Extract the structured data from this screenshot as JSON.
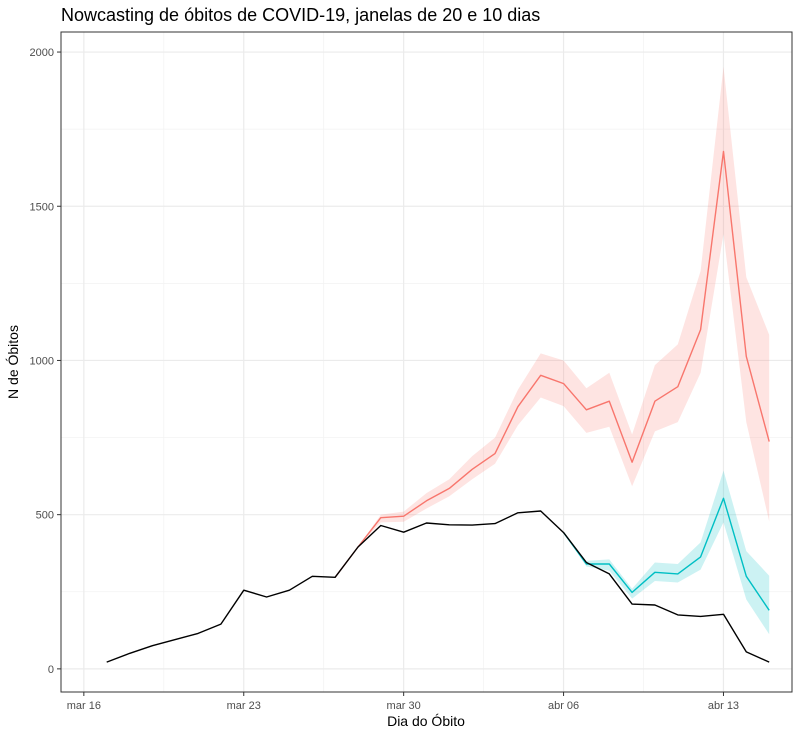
{
  "chart_data": {
    "type": "line",
    "title": "Nowcasting de óbitos de COVID-19, janelas de 20 e 10 dias",
    "xlabel": "Dia do Óbito",
    "ylabel": "N de Óbitos",
    "x_ticks": [
      "mar 16",
      "mar 23",
      "mar 30",
      "abr 06",
      "abr 13"
    ],
    "y_ticks": [
      0,
      500,
      1000,
      1500,
      2000
    ],
    "xlim": [
      "2020-03-15",
      "2020-04-16"
    ],
    "ylim": [
      -75,
      2065
    ],
    "grid": true,
    "legend": "none",
    "series": [
      {
        "color": "#000000",
        "ribbon": null,
        "points": [
          [
            "2020-03-17",
            22
          ],
          [
            "2020-03-18",
            50
          ],
          [
            "2020-03-19",
            75
          ],
          [
            "2020-03-20",
            95
          ],
          [
            "2020-03-21",
            115
          ],
          [
            "2020-03-22",
            145
          ],
          [
            "2020-03-23",
            255
          ],
          [
            "2020-03-24",
            233
          ],
          [
            "2020-03-25",
            255
          ],
          [
            "2020-03-26",
            300
          ],
          [
            "2020-03-27",
            297
          ],
          [
            "2020-03-28",
            395
          ],
          [
            "2020-03-29",
            465
          ],
          [
            "2020-03-30",
            443
          ],
          [
            "2020-03-31",
            473
          ],
          [
            "2020-04-01",
            467
          ],
          [
            "2020-04-02",
            466
          ],
          [
            "2020-04-03",
            471
          ],
          [
            "2020-04-04",
            506
          ],
          [
            "2020-04-05",
            512
          ],
          [
            "2020-04-06",
            442
          ],
          [
            "2020-04-07",
            345
          ],
          [
            "2020-04-08",
            308
          ],
          [
            "2020-04-09",
            210
          ],
          [
            "2020-04-10",
            207
          ],
          [
            "2020-04-11",
            175
          ],
          [
            "2020-04-12",
            170
          ],
          [
            "2020-04-13",
            177
          ],
          [
            "2020-04-14",
            55
          ],
          [
            "2020-04-15",
            22
          ]
        ]
      },
      {
        "color": "#f8766d",
        "ribbon_color": "#f8766d",
        "points": [
          [
            "2020-03-27",
            297
          ],
          [
            "2020-03-28",
            395
          ],
          [
            "2020-03-29",
            490
          ],
          [
            "2020-03-30",
            495
          ],
          [
            "2020-03-31",
            545
          ],
          [
            "2020-04-01",
            585
          ],
          [
            "2020-04-02",
            647
          ],
          [
            "2020-04-03",
            698
          ],
          [
            "2020-04-04",
            850
          ],
          [
            "2020-04-05",
            952
          ],
          [
            "2020-04-06",
            925
          ],
          [
            "2020-04-07",
            840
          ],
          [
            "2020-04-08",
            868
          ],
          [
            "2020-04-09",
            670
          ],
          [
            "2020-04-10",
            868
          ],
          [
            "2020-04-11",
            915
          ],
          [
            "2020-04-12",
            1100
          ],
          [
            "2020-04-13",
            1678
          ],
          [
            "2020-04-14",
            1013
          ],
          [
            "2020-04-15",
            737
          ]
        ],
        "lower": [
          297,
          395,
          475,
          477,
          520,
          560,
          615,
          665,
          790,
          880,
          852,
          765,
          785,
          592,
          770,
          800,
          960,
          1410,
          800,
          478
        ],
        "upper": [
          297,
          395,
          500,
          510,
          570,
          615,
          690,
          750,
          905,
          1023,
          1000,
          910,
          960,
          760,
          985,
          1052,
          1290,
          1952,
          1270,
          1083
        ]
      },
      {
        "color": "#00bfc4",
        "ribbon_color": "#00bfc4",
        "points": [
          [
            "2020-04-06",
            442
          ],
          [
            "2020-04-07",
            340
          ],
          [
            "2020-04-08",
            340
          ],
          [
            "2020-04-09",
            248
          ],
          [
            "2020-04-10",
            313
          ],
          [
            "2020-04-11",
            308
          ],
          [
            "2020-04-12",
            363
          ],
          [
            "2020-04-13",
            553
          ],
          [
            "2020-04-14",
            300
          ],
          [
            "2020-04-15",
            190
          ]
        ],
        "lower": [
          442,
          332,
          318,
          228,
          285,
          280,
          322,
          475,
          225,
          112
        ],
        "upper": [
          442,
          350,
          355,
          260,
          345,
          340,
          410,
          643,
          382,
          302
        ]
      }
    ]
  }
}
